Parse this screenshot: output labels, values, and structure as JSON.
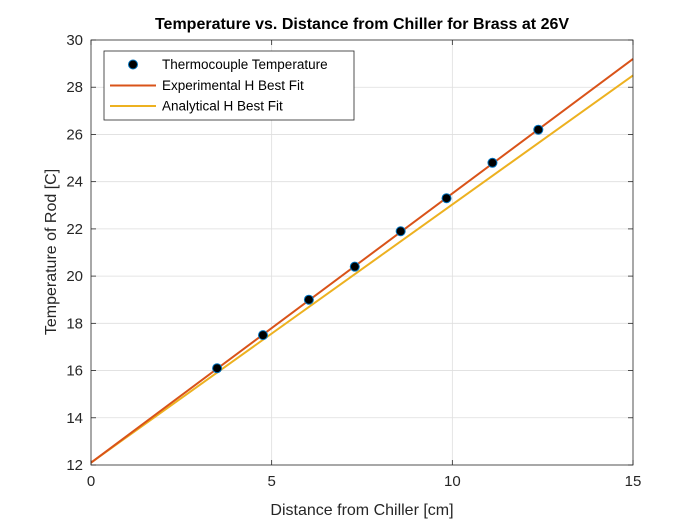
{
  "chart_data": {
    "type": "line",
    "title": "Temperature vs. Distance from Chiller for Brass at 26V",
    "xlabel": "Distance from Chiller [cm]",
    "ylabel": "Temperature of Rod [C]",
    "xlim": [
      0,
      15
    ],
    "ylim": [
      12,
      30
    ],
    "xticks": [
      0,
      5,
      10,
      15
    ],
    "yticks": [
      12,
      14,
      16,
      18,
      20,
      22,
      24,
      26,
      28,
      30
    ],
    "grid": true,
    "legend_position": "top-left",
    "series": [
      {
        "name": "Thermocouple Temperature",
        "kind": "scatter",
        "color": "#000000",
        "edge_color": "#0072BD",
        "x": [
          3.49,
          4.76,
          6.03,
          7.3,
          8.57,
          9.84,
          11.11,
          12.38
        ],
        "y": [
          16.1,
          17.5,
          19.0,
          20.4,
          21.9,
          23.3,
          24.8,
          26.2
        ]
      },
      {
        "name": "Experimental H Best Fit",
        "kind": "line",
        "color": "#D95319",
        "x": [
          0,
          15
        ],
        "y": [
          12.1,
          29.2
        ]
      },
      {
        "name": "Analytical H Best Fit",
        "kind": "line",
        "color": "#EDB120",
        "x": [
          0,
          15
        ],
        "y": [
          12.1,
          28.5
        ]
      }
    ]
  }
}
